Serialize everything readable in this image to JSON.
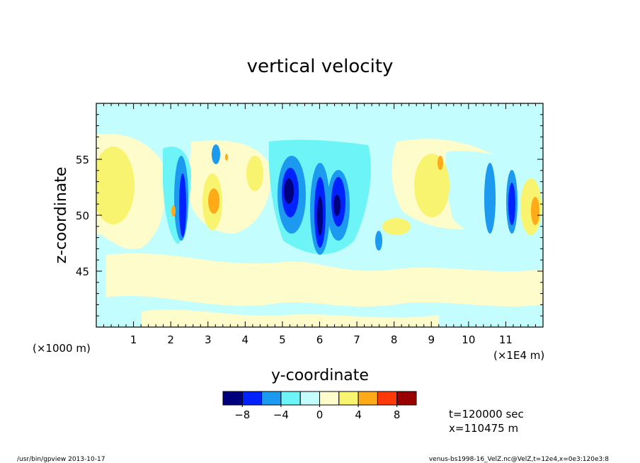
{
  "chart_data": {
    "type": "heatmap",
    "title": "vertical velocity",
    "xlabel": "y-coordinate",
    "ylabel": "z-coordinate",
    "x_units_left": "(×1000 m)",
    "x_units_right": "(×1E4 m)",
    "xlim": [
      0,
      12
    ],
    "ylim": [
      40,
      60
    ],
    "x_ticks": [
      "1",
      "2",
      "3",
      "4",
      "5",
      "6",
      "7",
      "8",
      "9",
      "10",
      "11"
    ],
    "y_ticks": [
      "45",
      "50",
      "55"
    ],
    "colorbar": {
      "colors": [
        "#00007f",
        "#0022ff",
        "#1c9af0",
        "#6cf4f6",
        "#c3fdfd",
        "#fffccc",
        "#f9f46f",
        "#ffaa19",
        "#ff3a08",
        "#990000"
      ],
      "tick_labels": [
        "−8",
        "−4",
        "0",
        "4",
        "8"
      ]
    },
    "cells": [
      {
        "x": 2.35,
        "z": 51.0,
        "level": 0
      },
      {
        "x": 2.3,
        "z": 52.5,
        "level": 1
      },
      {
        "x": 5.2,
        "z": 51.8,
        "level": 0
      },
      {
        "x": 5.5,
        "z": 52.5,
        "level": 1
      },
      {
        "x": 5.95,
        "z": 49.8,
        "level": 0
      },
      {
        "x": 6.5,
        "z": 51.0,
        "level": 0
      },
      {
        "x": 6.3,
        "z": 52.0,
        "level": 1
      },
      {
        "x": 10.6,
        "z": 51.0,
        "level": 1
      },
      {
        "x": 11.2,
        "z": 51.3,
        "level": 1
      },
      {
        "x": 3.0,
        "z": 51.0,
        "level": 7
      },
      {
        "x": 11.8,
        "z": 50.5,
        "level": 7
      },
      {
        "x": 9.2,
        "z": 54.5,
        "level": 7
      },
      {
        "x": 2.0,
        "z": 50.5,
        "level": 7
      },
      {
        "x": 0.6,
        "z": 51.5,
        "level": 6
      },
      {
        "x": 3.0,
        "z": 52.0,
        "level": 6
      },
      {
        "x": 9.0,
        "z": 51.0,
        "level": 6
      },
      {
        "x": 4.5,
        "z": 52.0,
        "level": 6
      }
    ]
  },
  "annotations": {
    "time": "t=120000 sec",
    "position": "x=110475 m",
    "footer_left": "/usr/bin/gpview   2013-10-17",
    "footer_right": "venus-bs1998-16_VelZ.nc@VelZ,t=12e4,x=0e3:120e3:8"
  }
}
